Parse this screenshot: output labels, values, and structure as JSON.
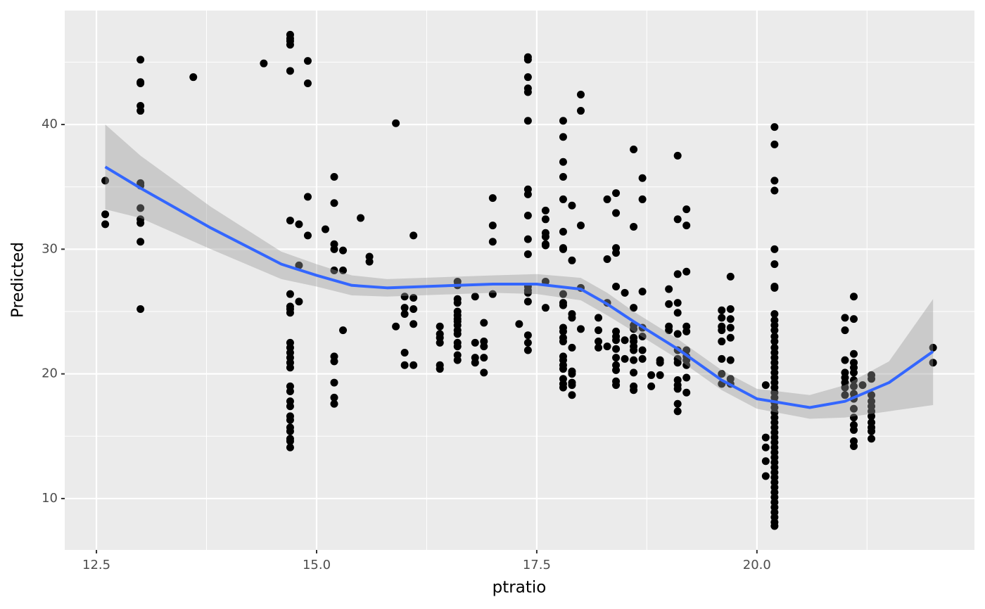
{
  "chart_data": {
    "type": "scatter",
    "x_label": "ptratio",
    "y_label": "Predicted",
    "color": "#000000",
    "grid": true,
    "panel_color": "#ebebeb",
    "xlim": [
      12.14,
      22.47
    ],
    "ylim": [
      5.88,
      49.14
    ],
    "xticks": [
      12.5,
      {
        "value": 15,
        "label": "15.0"
      },
      17.5,
      {
        "value": 20,
        "label": "20.0"
      }
    ],
    "yticks": [
      10,
      20,
      30,
      40
    ],
    "xminor": [
      13.75,
      16.25,
      18.75,
      21.25
    ],
    "yminor": [
      15,
      25,
      35,
      45
    ],
    "x": [
      12.6,
      12.6,
      12.6,
      13,
      13,
      13,
      13,
      13,
      13,
      13,
      13,
      13,
      13,
      13,
      13,
      13.6,
      14.4,
      14.7,
      14.7,
      14.7,
      14.7,
      14.7,
      14.7,
      14.7,
      14.7,
      14.7,
      14.7,
      14.7,
      14.7,
      14.7,
      14.7,
      14.7,
      14.7,
      14.7,
      14.7,
      14.7,
      14.7,
      14.7,
      14.7,
      14.7,
      14.7,
      14.7,
      14.7,
      14.7,
      14.8,
      14.8,
      14.8,
      14.9,
      14.9,
      14.9,
      14.9,
      15.1,
      15.2,
      15.2,
      15.2,
      15.2,
      15.2,
      15.2,
      15.2,
      15.2,
      15.2,
      15.2,
      15.3,
      15.3,
      15.3,
      15.5,
      15.6,
      15.6,
      15.9,
      15.9,
      16,
      16,
      16,
      16,
      16,
      16.1,
      16.1,
      16.1,
      16.1,
      16.1,
      16.4,
      16.4,
      16.4,
      16.4,
      16.4,
      16.4,
      16.6,
      16.6,
      16.6,
      16.6,
      16.6,
      16.6,
      16.6,
      16.6,
      16.6,
      16.6,
      16.6,
      16.6,
      16.6,
      16.6,
      16.6,
      16.8,
      16.8,
      16.8,
      16.8,
      16.9,
      16.9,
      16.9,
      16.9,
      16.9,
      17,
      17,
      17,
      17,
      17.3,
      17.4,
      17.4,
      17.4,
      17.4,
      17.4,
      17.4,
      17.4,
      17.4,
      17.4,
      17.4,
      17.4,
      17.4,
      17.4,
      17.4,
      17.4,
      17.4,
      17.4,
      17.4,
      17.6,
      17.6,
      17.6,
      17.6,
      17.6,
      17.6,
      17.6,
      17.6,
      17.8,
      17.8,
      17.8,
      17.8,
      17.8,
      17.8,
      17.8,
      17.8,
      17.8,
      17.8,
      17.8,
      17.8,
      17.8,
      17.8,
      17.8,
      17.8,
      17.8,
      17.8,
      17.8,
      17.8,
      17.8,
      17.8,
      17.9,
      17.9,
      17.9,
      17.9,
      17.9,
      17.9,
      17.9,
      17.9,
      17.9,
      17.9,
      18,
      18,
      18,
      18,
      18,
      18.2,
      18.2,
      18.2,
      18.2,
      18.3,
      18.3,
      18.3,
      18.3,
      18.4,
      18.4,
      18.4,
      18.4,
      18.4,
      18.4,
      18.4,
      18.4,
      18.4,
      18.4,
      18.4,
      18.4,
      18.4,
      18.4,
      18.5,
      18.5,
      18.5,
      18.6,
      18.6,
      18.6,
      18.6,
      18.6,
      18.6,
      18.6,
      18.6,
      18.6,
      18.6,
      18.6,
      18.6,
      18.6,
      18.7,
      18.7,
      18.7,
      18.7,
      18.7,
      18.7,
      18.7,
      18.8,
      18.8,
      18.9,
      18.9,
      18.9,
      19,
      19,
      19,
      19,
      19.1,
      19.1,
      19.1,
      19.1,
      19.1,
      19.1,
      19.1,
      19.1,
      19.1,
      19.1,
      19.1,
      19.1,
      19.1,
      19.1,
      19.2,
      19.2,
      19.2,
      19.2,
      19.2,
      19.2,
      19.2,
      19.2,
      19.2,
      19.2,
      19.2,
      19.6,
      19.6,
      19.6,
      19.6,
      19.6,
      19.6,
      19.6,
      19.6,
      19.7,
      19.7,
      19.7,
      19.7,
      19.7,
      19.7,
      19.7,
      19.7,
      20.1,
      20.1,
      20.1,
      20.1,
      20.1,
      20.2,
      20.2,
      20.2,
      20.2,
      20.2,
      20.2,
      20.2,
      20.2,
      20.2,
      20.2,
      20.2,
      20.2,
      20.2,
      20.2,
      20.2,
      20.2,
      20.2,
      20.2,
      20.2,
      20.2,
      20.2,
      20.2,
      20.2,
      20.2,
      20.2,
      20.2,
      20.2,
      20.2,
      20.2,
      20.2,
      20.2,
      20.2,
      20.2,
      20.2,
      20.2,
      20.2,
      20.2,
      20.2,
      20.2,
      20.2,
      20.2,
      20.2,
      20.2,
      20.2,
      20.2,
      20.2,
      20.2,
      20.2,
      20.2,
      20.2,
      20.2,
      21,
      21,
      21,
      21,
      21,
      21,
      21,
      21,
      21.1,
      21.1,
      21.1,
      21.1,
      21.1,
      21.1,
      21.1,
      21.1,
      21.1,
      21.1,
      21.1,
      21.1,
      21.1,
      21.1,
      21.1,
      21.1,
      21.2,
      21.3,
      21.3,
      21.3,
      21.3,
      21.3,
      21.3,
      21.3,
      21.3,
      21.3,
      21.3,
      21.3,
      22,
      22
    ],
    "values": [
      35.5,
      32.8,
      32.0,
      45.2,
      43.4,
      43.3,
      41.5,
      41.1,
      35.3,
      35.1,
      33.3,
      32.4,
      32.1,
      30.6,
      25.2,
      43.8,
      44.9,
      47.2,
      46.9,
      46.7,
      46.4,
      44.3,
      32.3,
      26.4,
      25.4,
      25.2,
      24.9,
      22.5,
      22.1,
      21.7,
      21.3,
      20.9,
      20.5,
      19.0,
      18.6,
      17.8,
      17.4,
      16.6,
      16.3,
      15.7,
      15.4,
      14.8,
      14.6,
      14.1,
      32.0,
      28.7,
      25.8,
      45.1,
      43.3,
      34.2,
      31.1,
      31.6,
      35.8,
      33.7,
      30.4,
      30.0,
      28.3,
      21.4,
      21.0,
      19.3,
      18.1,
      17.6,
      29.9,
      28.3,
      23.5,
      32.5,
      29.4,
      29.0,
      40.1,
      23.8,
      26.2,
      25.3,
      24.8,
      21.7,
      20.7,
      31.1,
      26.1,
      25.2,
      24.0,
      20.7,
      23.8,
      23.2,
      22.9,
      22.5,
      20.7,
      20.4,
      27.4,
      27.1,
      26.0,
      25.7,
      25.0,
      24.7,
      24.4,
      24.2,
      23.9,
      23.5,
      23.2,
      22.5,
      22.2,
      21.5,
      21.1,
      26.2,
      22.5,
      21.3,
      20.9,
      24.1,
      22.6,
      22.2,
      21.3,
      20.1,
      34.1,
      31.9,
      30.6,
      26.4,
      24.0,
      45.4,
      45.2,
      43.8,
      42.9,
      42.6,
      40.3,
      34.8,
      34.4,
      32.7,
      30.8,
      29.6,
      27.0,
      26.7,
      26.5,
      25.8,
      23.1,
      22.5,
      21.9,
      33.1,
      32.4,
      31.3,
      31.0,
      30.4,
      30.3,
      27.4,
      25.3,
      40.3,
      39.0,
      37.0,
      35.8,
      34.0,
      31.4,
      30.1,
      30.0,
      26.4,
      25.7,
      25.5,
      23.7,
      23.4,
      22.9,
      22.6,
      21.4,
      21.1,
      20.7,
      20.4,
      19.6,
      19.2,
      18.9,
      33.5,
      29.1,
      24.8,
      24.5,
      22.1,
      20.2,
      20.0,
      19.3,
      19.1,
      18.3,
      42.4,
      41.1,
      31.9,
      26.9,
      23.6,
      24.5,
      23.5,
      22.6,
      22.1,
      34.0,
      29.2,
      25.7,
      22.2,
      34.5,
      32.9,
      30.1,
      29.7,
      27.0,
      23.4,
      23.0,
      22.7,
      22.0,
      21.3,
      20.7,
      20.3,
      19.4,
      19.1,
      26.5,
      22.7,
      21.2,
      38.0,
      31.8,
      25.3,
      23.9,
      23.6,
      22.9,
      22.6,
      22.2,
      21.9,
      21.1,
      20.1,
      19.0,
      18.7,
      35.7,
      34.0,
      26.6,
      23.7,
      23.0,
      21.9,
      21.2,
      19.9,
      19.0,
      21.1,
      20.9,
      19.9,
      26.8,
      25.6,
      23.8,
      23.5,
      37.5,
      32.4,
      28.0,
      25.7,
      24.9,
      23.2,
      21.9,
      21.2,
      20.9,
      19.5,
      19.1,
      18.8,
      17.6,
      17.0,
      33.2,
      31.9,
      28.2,
      23.8,
      23.4,
      21.9,
      21.4,
      21.1,
      20.7,
      19.7,
      18.5,
      25.1,
      24.5,
      23.8,
      23.5,
      22.6,
      21.2,
      20.0,
      19.2,
      27.8,
      25.2,
      24.4,
      23.7,
      22.9,
      21.1,
      19.6,
      19.2,
      19.1,
      14.9,
      14.1,
      13.0,
      11.8,
      39.8,
      38.4,
      35.5,
      34.7,
      30.0,
      28.8,
      27.0,
      26.9,
      24.8,
      24.3,
      23.9,
      23.5,
      23.0,
      22.6,
      22.1,
      21.7,
      21.3,
      20.9,
      20.5,
      20.1,
      19.7,
      19.3,
      18.9,
      18.5,
      18.1,
      17.7,
      17.3,
      16.9,
      16.5,
      16.1,
      15.7,
      15.3,
      14.9,
      14.5,
      14.1,
      13.7,
      13.3,
      12.9,
      12.5,
      12.1,
      11.7,
      11.3,
      10.9,
      10.5,
      10.1,
      9.7,
      9.3,
      8.9,
      8.5,
      8.1,
      7.8,
      24.5,
      23.5,
      21.1,
      20.1,
      19.7,
      19.3,
      18.9,
      18.3,
      26.2,
      24.4,
      21.6,
      20.9,
      20.5,
      20.1,
      19.5,
      19.0,
      18.4,
      18.0,
      17.2,
      16.5,
      15.9,
      15.5,
      14.6,
      14.2,
      19.1,
      19.9,
      19.6,
      18.3,
      17.8,
      17.4,
      17.0,
      16.6,
      16.1,
      15.7,
      15.4,
      14.8,
      22.1,
      20.9
    ],
    "smooth": {
      "color": "#3366ff",
      "fill": "#999999",
      "x": [
        12.6,
        13.0,
        13.8,
        14.6,
        15.0,
        15.4,
        15.8,
        16.6,
        17.0,
        17.5,
        18.0,
        18.3,
        18.6,
        19.1,
        19.6,
        20.0,
        20.6,
        21.0,
        21.5,
        22.0
      ],
      "y": [
        36.6,
        34.9,
        31.7,
        28.8,
        27.9,
        27.1,
        26.9,
        27.1,
        27.2,
        27.2,
        26.8,
        25.6,
        24.2,
        22.0,
        19.5,
        18.0,
        17.3,
        17.8,
        19.3,
        21.8
      ],
      "ymin": [
        33.2,
        32.5,
        30.0,
        27.6,
        27.0,
        26.3,
        26.2,
        26.4,
        26.5,
        26.4,
        25.9,
        24.7,
        23.4,
        21.2,
        18.7,
        17.2,
        16.4,
        16.5,
        17.0,
        17.5
      ],
      "ymax": [
        40.0,
        37.5,
        33.4,
        29.8,
        28.8,
        27.9,
        27.6,
        27.8,
        27.9,
        28.0,
        27.7,
        26.5,
        25.0,
        22.8,
        20.3,
        18.8,
        18.3,
        19.1,
        21.0,
        26.0
      ]
    }
  }
}
